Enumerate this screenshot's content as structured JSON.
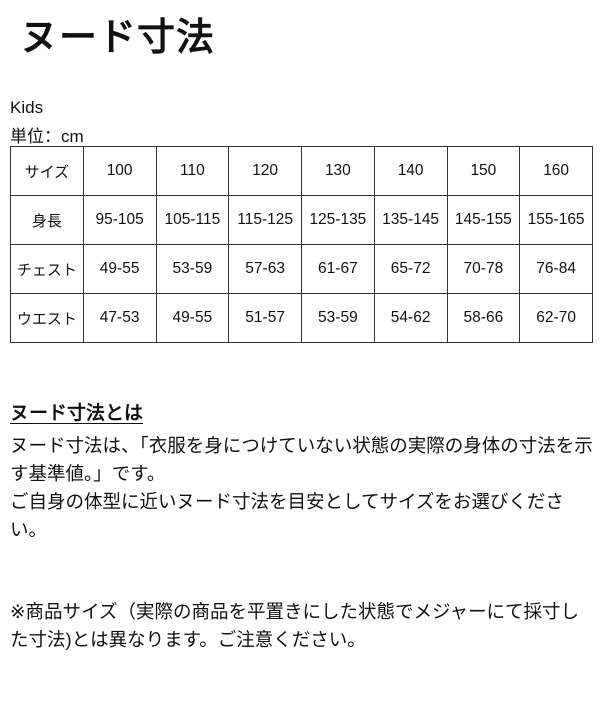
{
  "title": "ヌード寸法",
  "category": "Kids",
  "unit": "単位：cm",
  "table": {
    "header": [
      "サイズ",
      "100",
      "110",
      "120",
      "130",
      "140",
      "150",
      "160"
    ],
    "rows": [
      [
        "身長",
        "95-105",
        "105-115",
        "115-125",
        "125-135",
        "135-145",
        "145-155",
        "155-165"
      ],
      [
        "チェスト",
        "49-55",
        "53-59",
        "57-63",
        "61-67",
        "65-72",
        "70-78",
        "76-84"
      ],
      [
        "ウエスト",
        "47-53",
        "49-55",
        "51-57",
        "53-59",
        "54-62",
        "58-66",
        "62-70"
      ]
    ]
  },
  "about": {
    "heading": "ヌード寸法とは",
    "line1": "ヌード寸法は、「衣服を身につけていない状態の実際の身体の寸法を示す基準値。」です。",
    "line2": "ご自身の体型に近いヌード寸法を目安としてサイズをお選びください。"
  },
  "note": "※商品サイズ（実際の商品を平置きにした状態でメジャーにて採寸した寸法)とは異なります。ご注意ください。"
}
